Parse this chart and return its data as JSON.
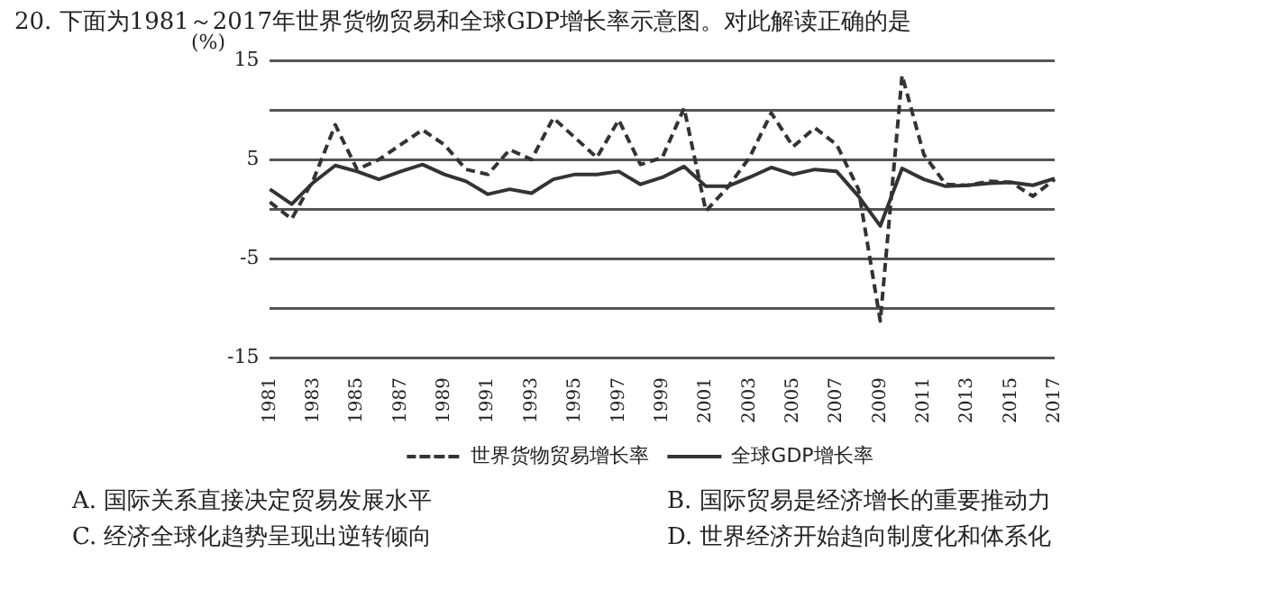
{
  "chart_data": {
    "type": "line",
    "title": "20. 下面为1981～2017年世界货物贸易和全球GDP增长率示意图。对此解读正确的是",
    "ylabel": "(%)",
    "categories": [
      "1981",
      null,
      "1983",
      null,
      "1985",
      null,
      "1987",
      null,
      "1989",
      null,
      "1991",
      null,
      "1993",
      null,
      "1995",
      null,
      "1997",
      null,
      "1999",
      null,
      "2001",
      null,
      "2003",
      null,
      "2005",
      null,
      "2007",
      null,
      "2009",
      null,
      "2011",
      null,
      "2013",
      null,
      "2015",
      null,
      "2017"
    ],
    "series": [
      {
        "name": "世界货物贸易增长率",
        "color": "#333333",
        "line_style": "dashed",
        "values": [
          0.7,
          -1,
          3,
          8.5,
          4,
          5,
          6.5,
          8,
          6.5,
          4,
          3.5,
          6,
          5,
          9.2,
          7.2,
          5.2,
          9,
          4.5,
          5.2,
          10.2,
          -0.2,
          2.2,
          5.2,
          9.7,
          6.3,
          8.2,
          6.5,
          2,
          -11.3,
          13.5,
          5.5,
          2.5,
          2.4,
          2.8,
          2.7,
          1.3,
          3
        ]
      },
      {
        "name": "全球GDP增长率",
        "color": "#333333",
        "line_style": "solid",
        "values": [
          2,
          0.5,
          2.7,
          4.4,
          3.8,
          3,
          3.8,
          4.5,
          3.5,
          2.8,
          1.5,
          2,
          1.6,
          3,
          3.5,
          3.5,
          3.8,
          2.5,
          3.2,
          4.3,
          2.3,
          2.3,
          3.2,
          4.2,
          3.5,
          4,
          3.8,
          1.3,
          -1.7,
          4.1,
          3,
          2.3,
          2.4,
          2.6,
          2.7,
          2.4,
          3.1
        ]
      }
    ],
    "ylim": [
      -15,
      15
    ],
    "yticks": [
      -15,
      {
        "value": -10,
        "label": null
      },
      -5,
      {
        "value": 0,
        "label": null
      },
      5,
      {
        "value": 10,
        "label": null
      },
      15
    ],
    "grid": "y",
    "legend": "bottom",
    "marker": "none",
    "annotations": [
      "A. 国际关系直接决定贸易发展水平",
      "B. 国际贸易是经济增长的重要推动力",
      "C. 经济全球化趋势呈现出逆转倾向",
      "D. 世界经济开始趋向制度化和体系化"
    ]
  }
}
